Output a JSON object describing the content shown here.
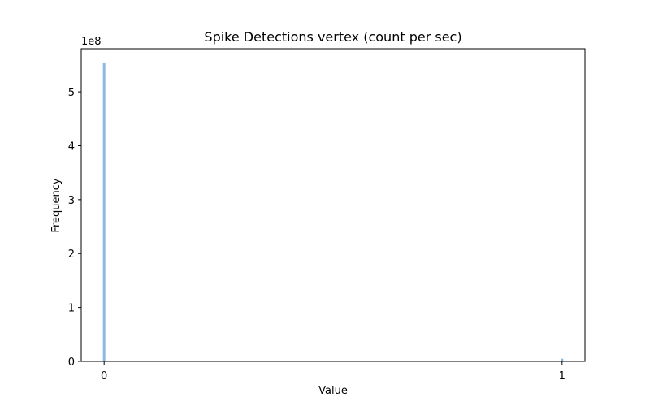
{
  "chart_data": {
    "type": "bar",
    "title": "Spike Detections vertex (count per sec)",
    "xlabel": "Value",
    "ylabel": "Frequency",
    "x": [
      0,
      1
    ],
    "values": [
      5.53,
      0.05
    ],
    "y_multiplier_label": "1e8",
    "xlim": [
      -0.05,
      1.05
    ],
    "ylim": [
      0,
      5.8
    ],
    "x_ticks": [
      "0",
      "1"
    ],
    "y_ticks": [
      "0",
      "1",
      "2",
      "3",
      "4",
      "5"
    ],
    "bar_color": "#8fb8de",
    "grid": false,
    "legend": "none"
  }
}
